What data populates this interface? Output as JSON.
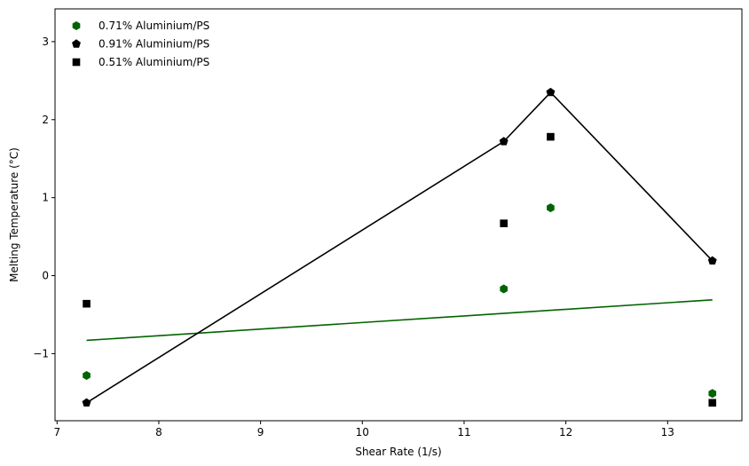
{
  "chart_data": {
    "type": "scatter",
    "title": "",
    "xlabel": "Shear Rate (1/s)",
    "ylabel": "Melting Temperature (°C)",
    "xlim": [
      6.98,
      13.73
    ],
    "ylim": [
      -1.86,
      3.42
    ],
    "xticks": [
      7,
      8,
      9,
      10,
      11,
      12,
      13
    ],
    "yticks": [
      -1,
      0,
      1,
      2,
      3
    ],
    "grid": false,
    "legend_position": "top-left",
    "series": [
      {
        "name": "0.71% Aluminium/PS",
        "marker": "hexagon",
        "color": "#006400",
        "x": [
          7.29,
          11.39,
          11.85,
          13.44
        ],
        "y": [
          -1.28,
          -0.17,
          0.87,
          -1.51
        ],
        "line": {
          "x": [
            7.29,
            13.44
          ],
          "y": [
            -0.83,
            -0.31
          ]
        }
      },
      {
        "name": "0.91% Aluminium/PS",
        "marker": "pentagon",
        "color": "#000000",
        "x": [
          7.29,
          11.39,
          11.85,
          13.44
        ],
        "y": [
          -1.63,
          1.72,
          2.35,
          0.19
        ],
        "line": {
          "x": [
            7.29,
            11.39,
            11.85,
            13.44
          ],
          "y": [
            -1.63,
            1.72,
            2.35,
            0.19
          ]
        }
      },
      {
        "name": "0.51% Aluminium/PS",
        "marker": "square",
        "color": "#000000",
        "x": [
          7.29,
          11.39,
          11.85,
          13.44
        ],
        "y": [
          -0.36,
          0.67,
          1.78,
          -1.63
        ]
      }
    ]
  }
}
